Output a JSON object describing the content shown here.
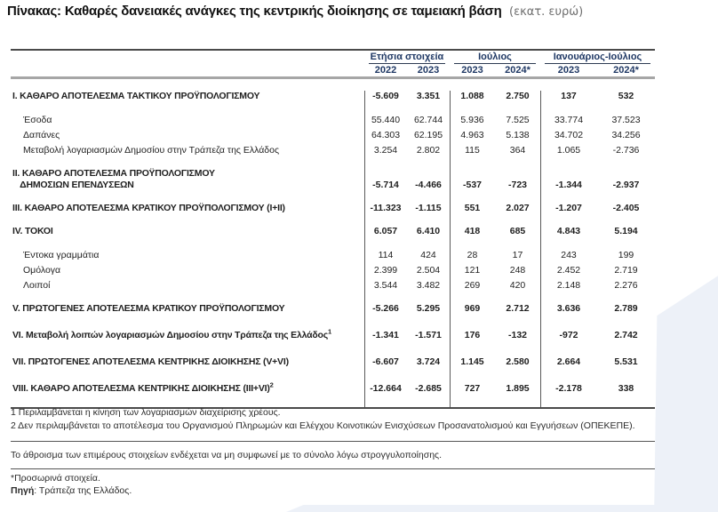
{
  "page": {
    "title": "Πίνακας: Καθαρές δανειακές ανάγκες της κεντρικής διοίκησης σε ταμειακή βάση",
    "unit": "(εκατ. ευρώ)"
  },
  "colors": {
    "header_navy": "#1f3864",
    "accent_bg": "#edf1f8"
  },
  "table": {
    "col_groups": [
      {
        "label": "Ετήσια στοιχεία",
        "years": [
          "2022",
          "2023"
        ]
      },
      {
        "label": "Ιούλιος",
        "years": [
          "2023",
          "2024*"
        ]
      },
      {
        "label": "Ιανουάριος-Ιούλιος",
        "years": [
          "2023",
          "2024*"
        ]
      }
    ],
    "rows": [
      {
        "style": "section",
        "label": "Ι. ΚΑΘΑΡΟ ΑΠΟΤΕΛΕΣΜΑ  ΤΑΚΤΙΚΟΥ ΠΡΟΫΠΟΛΟΓΙΣΜΟΥ",
        "values": [
          "-5.609",
          "3.351",
          "1.088",
          "2.750",
          "137",
          "532"
        ]
      },
      {
        "style": "sub",
        "label": "Έσοδα",
        "values": [
          "55.440",
          "62.744",
          "5.936",
          "7.525",
          "33.774",
          "37.523"
        ]
      },
      {
        "style": "sub",
        "label": "Δαπάνες",
        "values": [
          "64.303",
          "62.195",
          "4.963",
          "5.138",
          "34.702",
          "34.256"
        ]
      },
      {
        "style": "sub",
        "label": "Μεταβολή λογαριασμών Δημοσίου στην Τράπεζα της Ελλάδος",
        "values": [
          "3.254",
          "2.802",
          "115",
          "364",
          "1.065",
          "-2.736"
        ]
      },
      {
        "style": "section",
        "label": "ΙΙ. ΚΑΘΑΡΟ ΑΠΟΤΕΛΕΣΜΑ ΠΡΟΫΠΟΛΟΓΙΣΜΟΥ",
        "label2": "ΔΗΜΟΣΙΩΝ ΕΠΕΝΔΥΣΕΩΝ",
        "values": [
          "-5.714",
          "-4.466",
          "-537",
          "-723",
          "-1.344",
          "-2.937"
        ]
      },
      {
        "style": "section",
        "label": "ΙΙΙ. ΚΑΘΑΡΟ ΑΠΟΤΕΛΕΣΜΑ ΚΡΑΤΙΚΟΥ ΠΡΟΫΠΟΛΟΓΙΣΜΟΥ (Ι+ΙΙ)",
        "values": [
          "-11.323",
          "-1.115",
          "551",
          "2.027",
          "-1.207",
          "-2.405"
        ]
      },
      {
        "style": "section",
        "label": "IV. ΤΟΚΟΙ",
        "values": [
          "6.057",
          "6.410",
          "418",
          "685",
          "4.843",
          "5.194"
        ]
      },
      {
        "style": "sub",
        "label": "Έντοκα γραμμάτια",
        "values": [
          "114",
          "424",
          "28",
          "17",
          "243",
          "199"
        ]
      },
      {
        "style": "sub",
        "label": "Ομόλογα",
        "values": [
          "2.399",
          "2.504",
          "121",
          "248",
          "2.452",
          "2.719"
        ]
      },
      {
        "style": "sub",
        "label": "Λοιποί",
        "values": [
          "3.544",
          "3.482",
          "269",
          "420",
          "2.148",
          "2.276"
        ]
      },
      {
        "style": "section",
        "label": "V. ΠΡΩΤΟΓΕΝΕΣ ΑΠΟΤΕΛΕΣΜΑ  ΚΡΑΤΙΚΟΥ ΠΡΟΫΠΟΛΟΓΙΣΜΟΥ",
        "values": [
          "-5.266",
          "5.295",
          "969",
          "2.712",
          "3.636",
          "2.789"
        ]
      },
      {
        "style": "section-lg",
        "label": "VI. Μεταβολή λοιπών λογαριασμών Δημοσίου στην Τράπεζα της Ελλάδος",
        "sup": "1",
        "values": [
          "-1.341",
          "-1.571",
          "176",
          "-132",
          "-972",
          "2.742"
        ]
      },
      {
        "style": "section-lg",
        "label": "VII. ΠΡΩΤΟΓΕΝΕΣ ΑΠΟΤΕΛΕΣΜΑ ΚΕΝΤΡΙΚΗΣ ΔΙΟΙΚΗΣΗΣ (V+VI)",
        "values": [
          "-6.607",
          "3.724",
          "1.145",
          "2.580",
          "2.664",
          "5.531"
        ]
      },
      {
        "style": "section-lg",
        "label": "VIII. ΚΑΘΑΡΟ ΑΠΟΤΕΛΕΣΜΑ ΚΕΝΤΡΙΚΗΣ ΔΙΟΙΚΗΣΗΣ (ΙΙΙ+VI)",
        "sup": "2",
        "values": [
          "-12.664",
          "-2.685",
          "727",
          "1.895",
          "-2.178",
          "338"
        ]
      }
    ]
  },
  "notes": {
    "footnotes": [
      "1 Περιλαμβάνεται η κίνηση των λογαριασμών διαχείρισης χρέους.",
      "2 Δεν περιλαμβάνεται το αποτέλεσμα του Οργανισμού Πληρωμών και Ελέγχου Κοινοτικών Ενισχύσεων Προσανατολισμού και Εγγυήσεων (ΟΠΕΚΕΠΕ)."
    ],
    "rounding": "Το άθροισμα των επιμέρους στοιχείων ενδέχεται να μη συμφωνεί με το σύνολο λόγω στρογγυλοποίησης.",
    "provisional": "*Προσωρινά στοιχεία.",
    "source_label": "Πηγή",
    "source_text": ": Τράπεζα της Ελλάδος."
  }
}
